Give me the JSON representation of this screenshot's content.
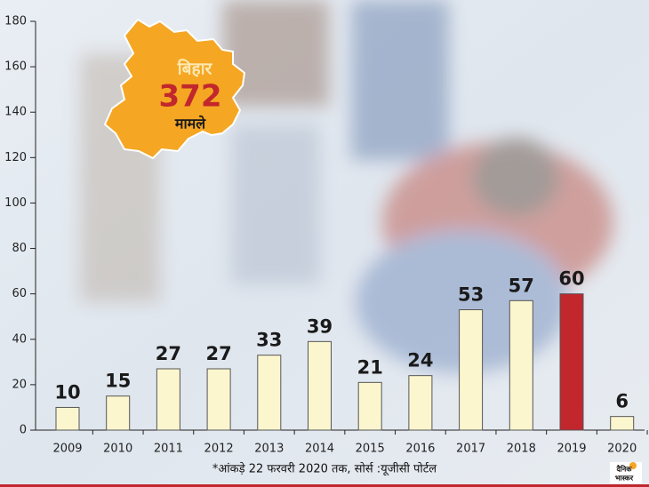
{
  "chart_data": {
    "type": "bar",
    "categories": [
      "2009",
      "2010",
      "2011",
      "2012",
      "2013",
      "2014",
      "2015",
      "2016",
      "2017",
      "2018",
      "2019",
      "2020"
    ],
    "values": [
      10,
      15,
      27,
      27,
      33,
      39,
      21,
      24,
      53,
      57,
      60,
      6
    ],
    "colors": [
      "#fcf6cf",
      "#fcf6cf",
      "#fcf6cf",
      "#fcf6cf",
      "#fcf6cf",
      "#fcf6cf",
      "#fcf6cf",
      "#fcf6cf",
      "#fcf6cf",
      "#fcf6cf",
      "#c1272d",
      "#fcf6cf"
    ],
    "ylim": [
      0,
      180
    ],
    "yticks": [
      0,
      20,
      40,
      60,
      80,
      100,
      120,
      140,
      160,
      180
    ],
    "annotations": {
      "state": "बिहार",
      "total": "372",
      "unit": "मामले"
    },
    "footnote": "*आंकड़े 22 फरवरी 2020 तक, सोर्स :यूजीसी पोर्टल",
    "logo": [
      "दैनिक",
      "भास्कर"
    ]
  }
}
